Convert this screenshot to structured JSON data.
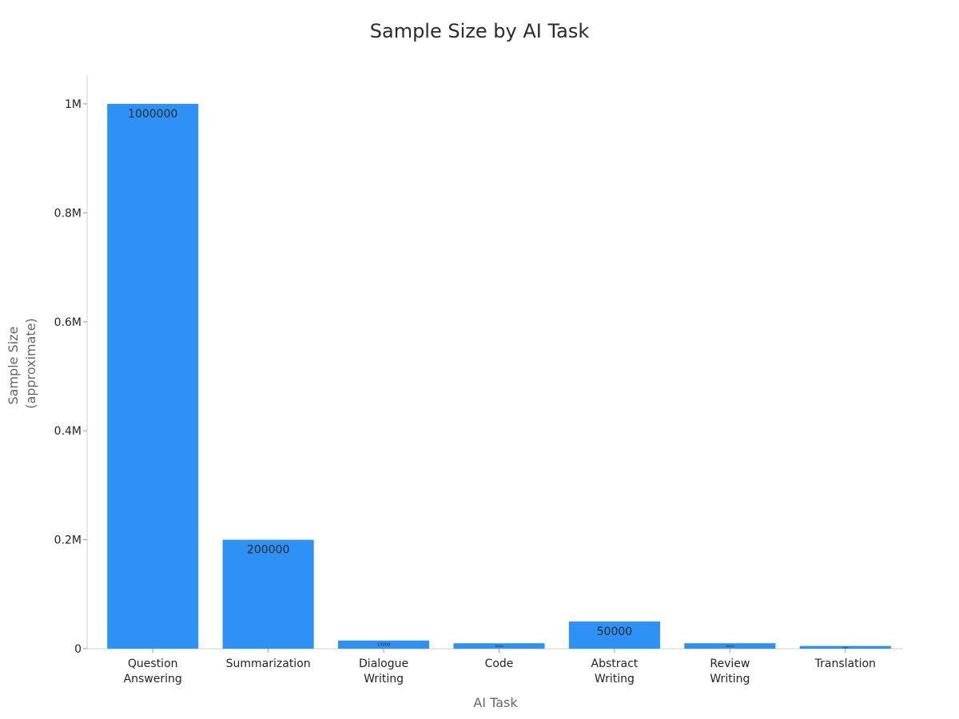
{
  "chart_data": {
    "type": "bar",
    "title": "Sample Size by AI Task",
    "xlabel": "AI Task",
    "ylabel": [
      "Sample Size",
      "(approximate)"
    ],
    "categories": [
      [
        "Question",
        "Answering"
      ],
      [
        "Summarization"
      ],
      [
        "Dialogue",
        "Writing"
      ],
      [
        "Code"
      ],
      [
        "Abstract",
        "Writing"
      ],
      [
        "Review",
        "Writing"
      ],
      [
        "Translation"
      ]
    ],
    "values": [
      1000000,
      200000,
      15000,
      10000,
      50000,
      10000,
      5000
    ],
    "data_labels": [
      "1000000",
      "200000",
      "15000",
      "10000",
      "50000",
      "10000",
      "5000"
    ],
    "ylim": [
      0,
      1050000
    ],
    "yticks": [
      0,
      200000,
      400000,
      600000,
      800000,
      1000000
    ],
    "ytick_labels": [
      "0",
      "0.2M",
      "0.4M",
      "0.6M",
      "0.8M",
      "1M"
    ],
    "bar_color": "#2e91f5",
    "grid": false,
    "legend": "none"
  }
}
